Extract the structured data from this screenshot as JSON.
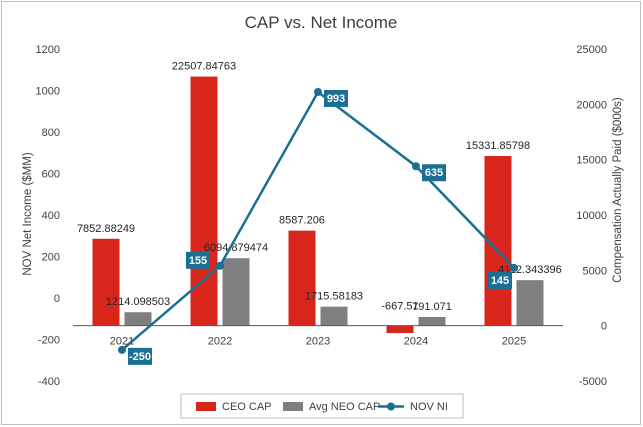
{
  "chart_data": {
    "type": "bar",
    "title": "CAP vs. Net Income",
    "ylabel_left": "NOV Net Income ($MM)",
    "ylabel_right": "Compensation Actually Paid ($000s)",
    "categories": [
      "2021",
      "2022",
      "2023",
      "2024",
      "2025"
    ],
    "ylim_left": [
      -400,
      1200
    ],
    "yticks_left": [
      "-400",
      "-200",
      "0",
      "200",
      "400",
      "600",
      "800",
      "1000",
      "1200"
    ],
    "ylim_right": [
      -5000,
      25000
    ],
    "yticks_right": [
      "-5000",
      "0",
      "5000",
      "10000",
      "15000",
      "20000",
      "25000"
    ],
    "series": [
      {
        "name": "CEO CAP",
        "axis": "right",
        "kind": "bar",
        "color": "#d9261c",
        "values": [
          7852.88249,
          22507.84763,
          8587.206,
          -667.51,
          15331.85798
        ],
        "labels": [
          "7852.88249",
          "22507.84763",
          "8587.206",
          "-667.51",
          "15331.85798"
        ]
      },
      {
        "name": "Avg NEO CAP",
        "axis": "right",
        "kind": "bar",
        "color": "#7f7f7f",
        "values": [
          1214.098503,
          6094.879474,
          1715.58183,
          791.071,
          4112.343396
        ],
        "labels": [
          "1214.098503",
          "6094.879474",
          "1715.58183",
          "791.071",
          "4112.343396"
        ]
      },
      {
        "name": "NOV NI",
        "axis": "left",
        "kind": "line",
        "color": "#1a6f93",
        "values": [
          -250,
          155,
          993,
          635,
          145
        ],
        "labels": [
          "-250",
          "155",
          "993",
          "635",
          "145"
        ]
      }
    ],
    "legend_position": "bottom",
    "grid": false
  }
}
